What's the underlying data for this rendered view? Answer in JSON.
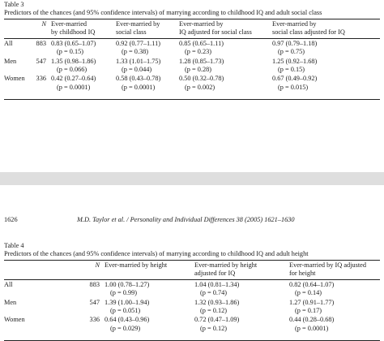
{
  "table3": {
    "label": "Table 3",
    "title": "Predictors of the chances (and 95% confidence intervals) of marrying according to childhood IQ and adult social class",
    "headers": [
      "",
      "N",
      "Ever-married\nby childhood IQ",
      "Ever-married by\nsocial class",
      "Ever-married by\nIQ adjusted for social class",
      "Ever-married by\nsocial class adjusted for IQ"
    ],
    "rows": [
      {
        "group": "All",
        "n": "883",
        "values": [
          [
            "0.83 (0.65–1.07)",
            "(p = 0.15)"
          ],
          [
            "0.92 (0.77–1.11)",
            "(p = 0.38)"
          ],
          [
            "0.85 (0.65–1.11)",
            "(p = 0.23)"
          ],
          [
            "0.97 (0.79–1.18)",
            "(p = 0.75)"
          ]
        ]
      },
      {
        "group": "Men",
        "n": "547",
        "values": [
          [
            "1.35 (0.98–1.86)",
            "(p = 0.066)"
          ],
          [
            "1.33 (1.01–1.75)",
            "(p = 0.044)"
          ],
          [
            "1.28 (0.85–1.73)",
            "(p = 0.28)"
          ],
          [
            "1.25 (0.92–1.68)",
            "(p = 0.15)"
          ]
        ]
      },
      {
        "group": "Women",
        "n": "336",
        "values": [
          [
            "0.42 (0.27–0.64)",
            "(p = 0.0001)"
          ],
          [
            "0.58 (0.43–0.78)",
            "(p = 0.0001)"
          ],
          [
            "0.50 (0.32–0.78)",
            "(p = 0.002)"
          ],
          [
            "0.67 (0.49–0.92)",
            "(p = 0.015)"
          ]
        ]
      }
    ]
  },
  "running_head": {
    "page_number": "1626",
    "citation": "M.D. Taylor et al. / Personality and Individual Differences 38 (2005) 1621–1630"
  },
  "table4": {
    "label": "Table 4",
    "title": "Predictors of the chances (and 95% confidence intervals) of marrying according to childhood IQ and adult height",
    "headers": [
      "",
      "N",
      "Ever-married by height",
      "Ever-married by height\nadjusted for IQ",
      "Ever-married by IQ adjusted\nfor height"
    ],
    "rows": [
      {
        "group": "All",
        "n": "883",
        "values": [
          [
            "1.00 (0.78–1.27)",
            "(p = 0.99)"
          ],
          [
            "1.04 (0.81–1.34)",
            "(p = 0.74)"
          ],
          [
            "0.82 (0.64–1.07)",
            "(p = 0.14)"
          ]
        ]
      },
      {
        "group": "Men",
        "n": "547",
        "values": [
          [
            "1.39 (1.00–1.94)",
            "(p = 0.051)"
          ],
          [
            "1.32 (0.93–1.86)",
            "(p = 0.12)"
          ],
          [
            "1.27 (0.91–1.77)",
            "(p = 0.17)"
          ]
        ]
      },
      {
        "group": "Women",
        "n": "336",
        "values": [
          [
            "0.64 (0.43–0.96)",
            "(p = 0.029)"
          ],
          [
            "0.72 (0.47–1.09)",
            "(p = 0.12)"
          ],
          [
            "0.44 (0.28–0.68)",
            "(p = 0.0001)"
          ]
        ]
      }
    ]
  }
}
